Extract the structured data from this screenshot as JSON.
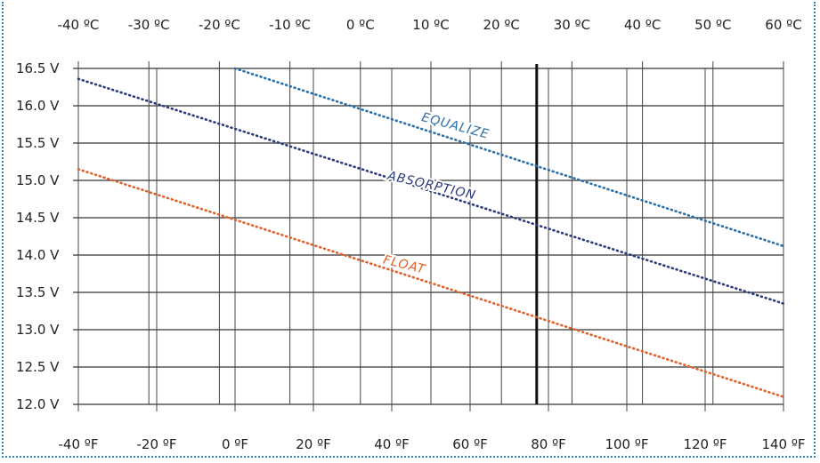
{
  "chart_data": {
    "type": "line",
    "ylim": [
      12.0,
      16.5
    ],
    "y_ticks": [
      "16.5 V",
      "16.0 V",
      "15.5 V",
      "15.0 V",
      "14.5 V",
      "14.0 V",
      "13.5 V",
      "13.0 V",
      "12.5 V",
      "12.0 V"
    ],
    "y_tick_values": [
      16.5,
      16.0,
      15.5,
      15.0,
      14.5,
      14.0,
      13.5,
      13.0,
      12.5,
      12.0
    ],
    "x_bottom_ticks": [
      "-40 ºF",
      "-20 ºF",
      "0 ºF",
      "20 ºF",
      "40 ºF",
      "60 ºF",
      "80 ºF",
      "100 ºF",
      "120 ºF",
      "140 ºF"
    ],
    "x_bottom_values": [
      -40,
      -20,
      0,
      20,
      40,
      60,
      80,
      100,
      120,
      140
    ],
    "x_top_ticks": [
      "-40 ºC",
      "-30 ºC",
      "-20 ºC",
      "-10 ºC",
      "0 ºC",
      "10 ºC",
      "20 ºC",
      "30 ºC",
      "40 ºC",
      "50 ºC",
      "60 ºC"
    ],
    "x_top_values_c": [
      -40,
      -30,
      -20,
      -10,
      0,
      10,
      20,
      30,
      40,
      50,
      60
    ],
    "xlim_f": [
      -40,
      140
    ],
    "grid": true,
    "reference_line_f": 77,
    "series": [
      {
        "name": "EQUALIZE",
        "color": "#2a6fa8",
        "x": [
          0,
          140
        ],
        "y": [
          16.5,
          14.12
        ]
      },
      {
        "name": "ABSORPTION",
        "color": "#2b3a7a",
        "x": [
          -40,
          140
        ],
        "y": [
          16.36,
          13.35
        ]
      },
      {
        "name": "FLOAT",
        "color": "#e0602a",
        "x": [
          -40,
          140
        ],
        "y": [
          15.15,
          12.1
        ]
      }
    ]
  }
}
